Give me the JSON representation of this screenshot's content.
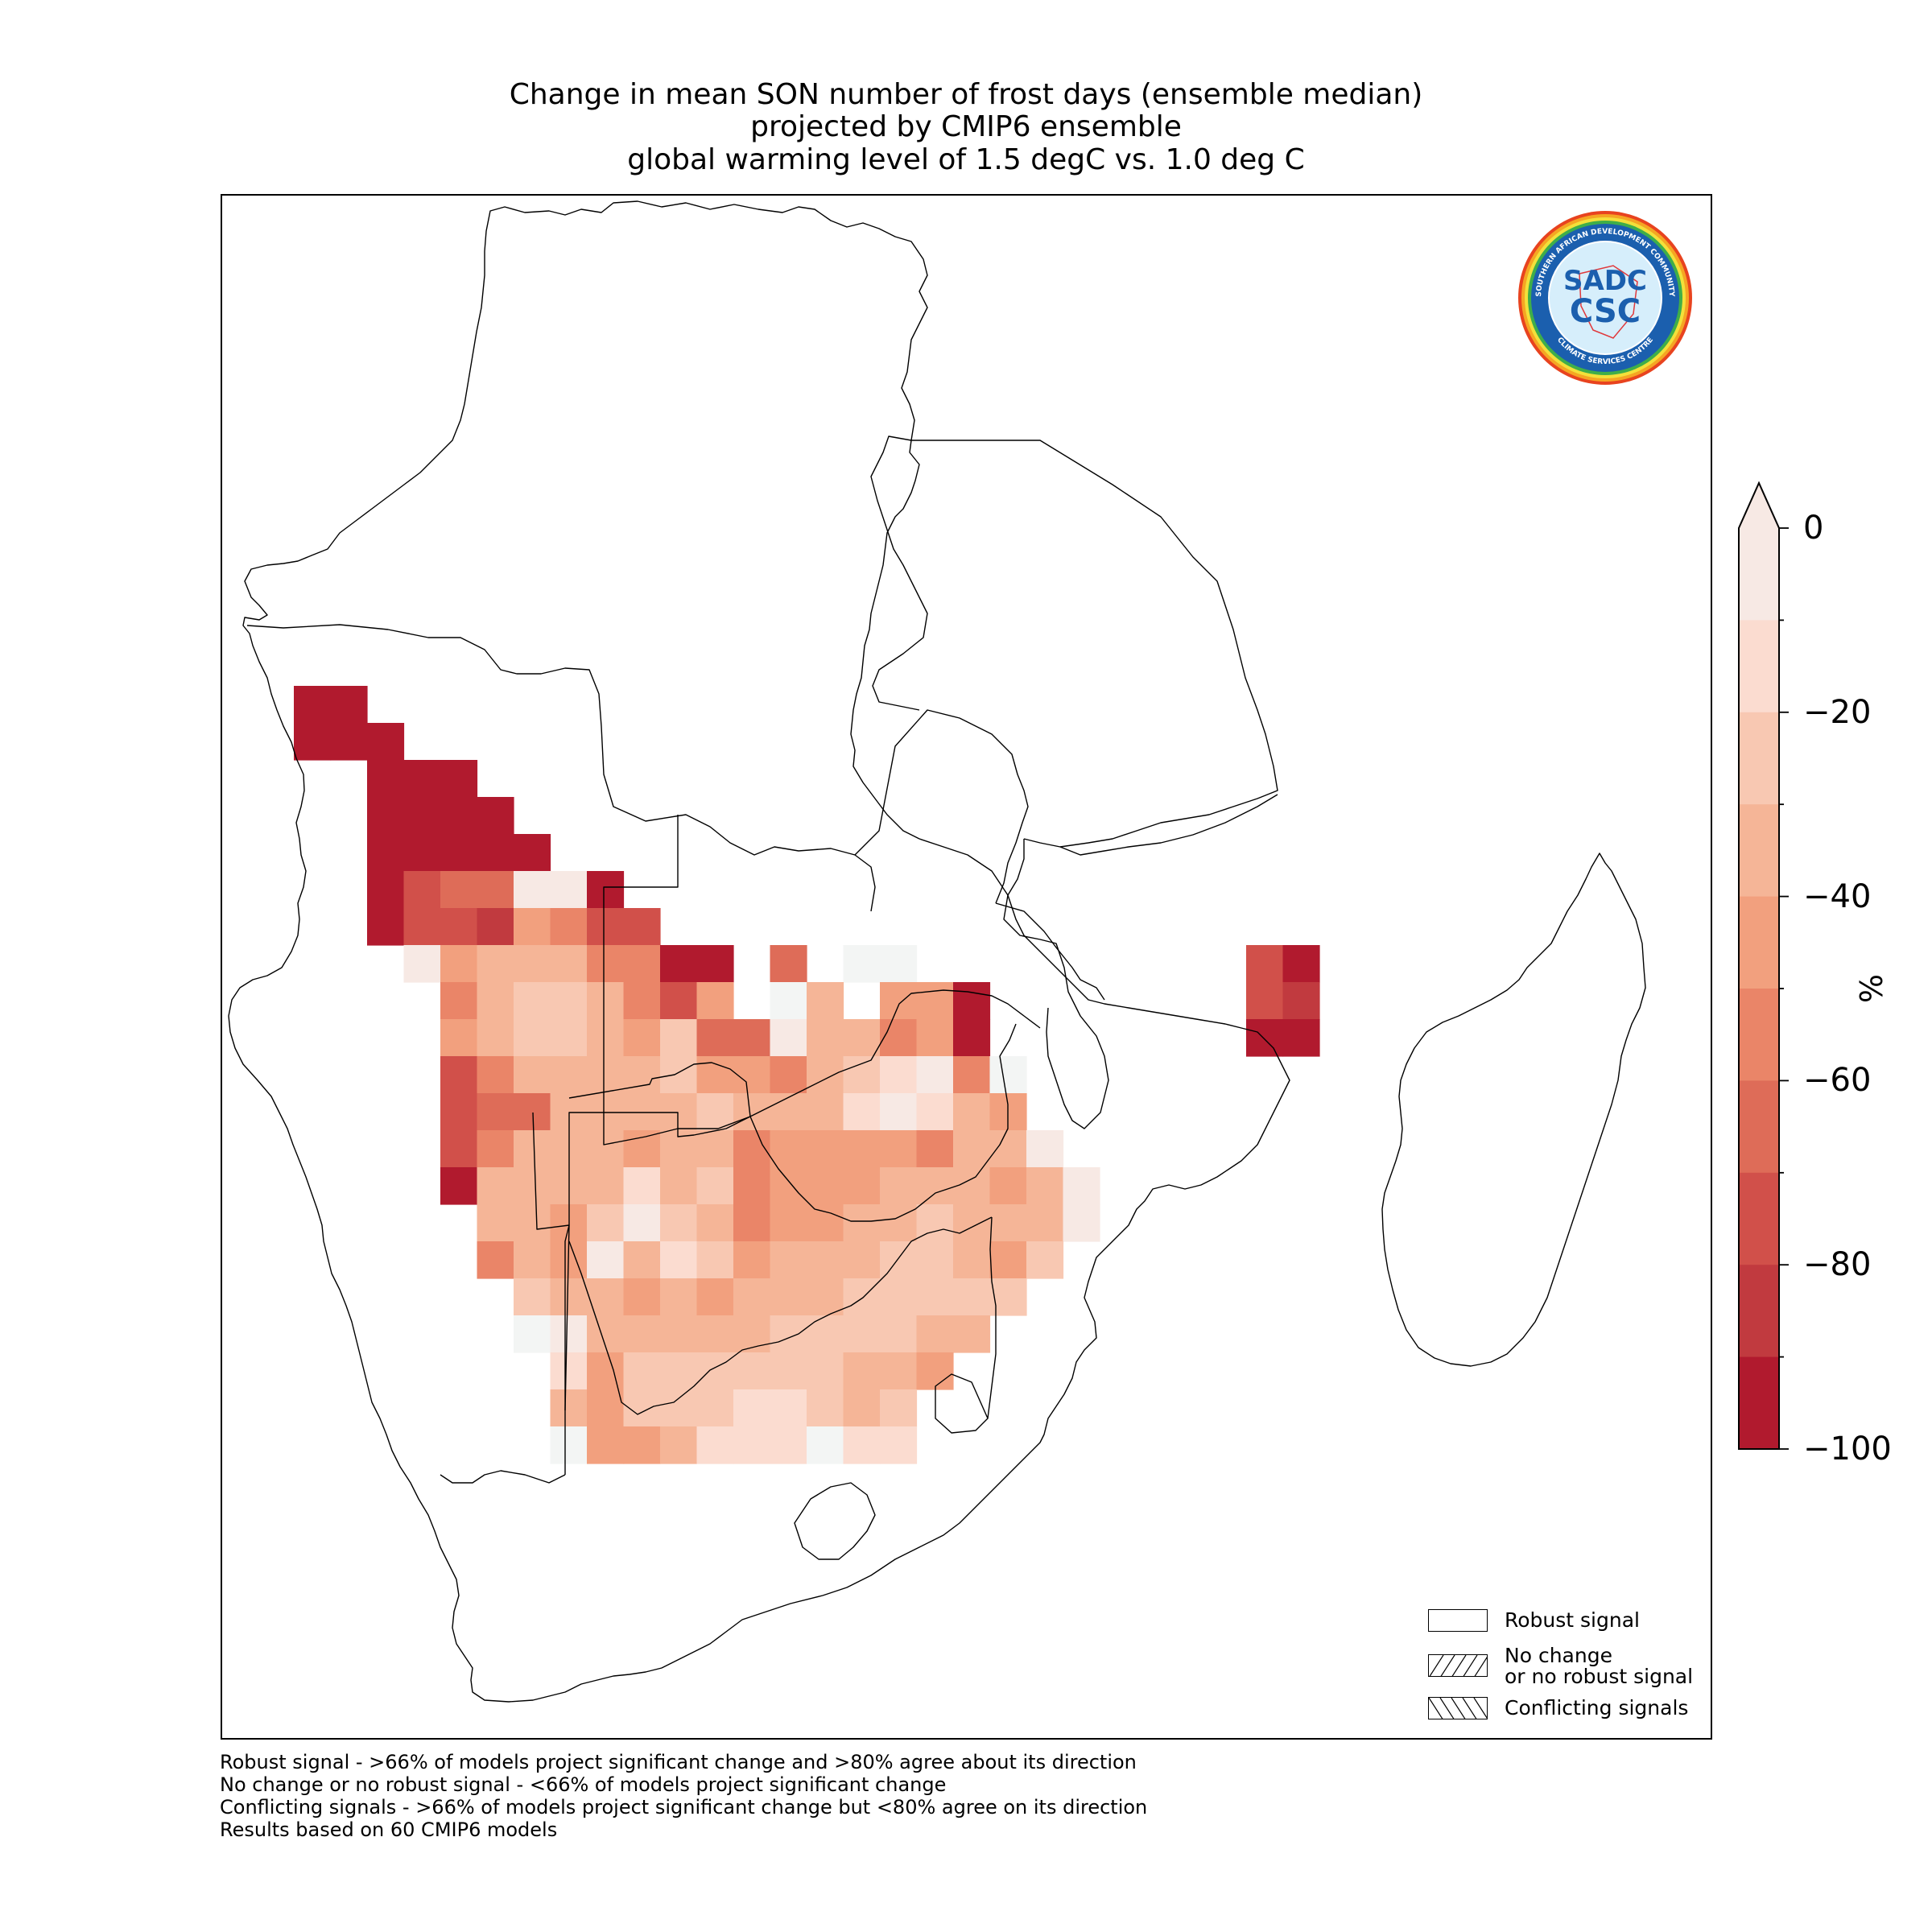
{
  "title": {
    "line1": "Change in mean SON number of frost days (ensemble median)",
    "line2": "projected by CMIP6 ensemble",
    "line3": "global warming level of 1.5 degC vs. 1.0 deg C"
  },
  "colorbar": {
    "unit": "%",
    "tick_labels": [
      "0",
      "−20",
      "−40",
      "−60",
      "−80",
      "−100"
    ],
    "extend": "min-arrow-top",
    "levels": [
      0,
      -10,
      -20,
      -30,
      -40,
      -50,
      -60,
      -70,
      -80,
      -90,
      -100
    ],
    "colors": [
      "#f7e9e4",
      "#fbdcd0",
      "#f8c8b2",
      "#f5b597",
      "#f2a07e",
      "#ea8568",
      "#de6c58",
      "#d1504a",
      "#c13a3f",
      "#b11a2e"
    ]
  },
  "legend": {
    "items": [
      {
        "label": "Robust signal",
        "pattern": "none"
      },
      {
        "label": "No change\nor no robust signal",
        "line1": "No change",
        "line2": "or no robust signal",
        "pattern": "forward-hatch"
      },
      {
        "label": "Conflicting signals",
        "pattern": "back-hatch"
      }
    ]
  },
  "footnotes": [
    "Robust signal - >66% of models project significant change and >80% agree about its direction",
    "No change or no robust signal - <66% of models project significant change",
    "Conflicting signals - >66% of models project significant change but <80% agree on its direction",
    "Results based on 60 CMIP6 models"
  ],
  "logo": {
    "name": "SADC CSC",
    "text_top": "SOUTHERN AFRICAN DEVELOPMENT COMMUNITY",
    "text_bottom": "CLIMATE SERVICES CENTRE",
    "mark_line1": "SADC",
    "mark_line2": "CSC"
  },
  "grid_legend_note": "",
  "map_data": {
    "cell_values_legend": "cell class index: 0=0, 1=-10..0, 2=-20..-10, 3=-30..-20, 4=-40..-30, 5=-50..-40, 6=-60..-50, 7=-70..-60, 8=-80..-70, 9=-90..-80, 10=<-90",
    "region": "Southern Africa incl. Madagascar",
    "cells": [
      [
        9,
        2,
        10
      ],
      [
        9,
        3,
        10
      ],
      [
        10,
        2,
        10
      ],
      [
        10,
        3,
        10
      ],
      [
        10,
        4,
        10
      ],
      [
        11,
        4,
        10
      ],
      [
        11,
        5,
        10
      ],
      [
        11,
        6,
        10
      ],
      [
        12,
        4,
        10
      ],
      [
        12,
        5,
        10
      ],
      [
        12,
        6,
        10
      ],
      [
        12,
        7,
        10
      ],
      [
        13,
        4,
        10
      ],
      [
        13,
        5,
        10
      ],
      [
        13,
        6,
        10
      ],
      [
        13,
        7,
        10
      ],
      [
        13,
        8,
        10
      ],
      [
        14,
        4,
        10
      ],
      [
        14,
        5,
        8
      ],
      [
        14,
        6,
        7
      ],
      [
        14,
        7,
        7
      ],
      [
        14,
        8,
        1
      ],
      [
        14,
        9,
        1
      ],
      [
        14,
        10,
        10
      ],
      [
        15,
        4,
        10
      ],
      [
        15,
        5,
        8
      ],
      [
        15,
        6,
        8
      ],
      [
        15,
        7,
        9
      ],
      [
        15,
        8,
        5
      ],
      [
        15,
        9,
        6
      ],
      [
        15,
        10,
        8
      ],
      [
        15,
        11,
        8
      ],
      [
        16,
        5,
        1
      ],
      [
        16,
        6,
        5
      ],
      [
        16,
        7,
        4
      ],
      [
        16,
        8,
        4
      ],
      [
        16,
        9,
        4
      ],
      [
        16,
        10,
        6
      ],
      [
        16,
        11,
        6
      ],
      [
        16,
        12,
        10
      ],
      [
        16,
        13,
        10
      ],
      [
        16,
        15,
        7
      ],
      [
        16,
        17,
        0
      ],
      [
        16,
        18,
        0
      ],
      [
        17,
        6,
        6
      ],
      [
        17,
        7,
        4
      ],
      [
        17,
        8,
        3
      ],
      [
        17,
        9,
        3
      ],
      [
        17,
        10,
        4
      ],
      [
        17,
        11,
        6
      ],
      [
        17,
        12,
        8
      ],
      [
        17,
        13,
        5
      ],
      [
        17,
        15,
        0
      ],
      [
        17,
        16,
        4
      ],
      [
        17,
        18,
        5
      ],
      [
        17,
        19,
        5
      ],
      [
        17,
        20,
        10
      ],
      [
        18,
        6,
        5
      ],
      [
        18,
        7,
        4
      ],
      [
        18,
        8,
        3
      ],
      [
        18,
        9,
        3
      ],
      [
        18,
        10,
        4
      ],
      [
        18,
        11,
        5
      ],
      [
        18,
        12,
        3
      ],
      [
        18,
        13,
        7
      ],
      [
        18,
        14,
        7
      ],
      [
        18,
        15,
        1
      ],
      [
        18,
        16,
        4
      ],
      [
        18,
        17,
        4
      ],
      [
        18,
        18,
        6
      ],
      [
        18,
        19,
        5
      ],
      [
        18,
        20,
        10
      ],
      [
        19,
        6,
        8
      ],
      [
        19,
        7,
        6
      ],
      [
        19,
        8,
        4
      ],
      [
        19,
        9,
        4
      ],
      [
        19,
        10,
        4
      ],
      [
        19,
        11,
        4
      ],
      [
        19,
        12,
        3
      ],
      [
        19,
        13,
        5
      ],
      [
        19,
        14,
        5
      ],
      [
        19,
        15,
        6
      ],
      [
        19,
        16,
        4
      ],
      [
        19,
        17,
        3
      ],
      [
        19,
        18,
        2
      ],
      [
        19,
        19,
        1
      ],
      [
        19,
        20,
        6
      ],
      [
        19,
        21,
        0
      ],
      [
        20,
        6,
        8
      ],
      [
        20,
        7,
        7
      ],
      [
        20,
        8,
        7
      ],
      [
        20,
        9,
        4
      ],
      [
        20,
        10,
        4
      ],
      [
        20,
        11,
        4
      ],
      [
        20,
        12,
        4
      ],
      [
        20,
        13,
        3
      ],
      [
        20,
        14,
        4
      ],
      [
        20,
        15,
        4
      ],
      [
        20,
        16,
        4
      ],
      [
        20,
        17,
        2
      ],
      [
        20,
        18,
        1
      ],
      [
        20,
        19,
        2
      ],
      [
        20,
        20,
        4
      ],
      [
        20,
        21,
        5
      ],
      [
        21,
        6,
        8
      ],
      [
        21,
        7,
        6
      ],
      [
        21,
        8,
        4
      ],
      [
        21,
        9,
        4
      ],
      [
        21,
        10,
        4
      ],
      [
        21,
        11,
        5
      ],
      [
        21,
        12,
        4
      ],
      [
        21,
        13,
        4
      ],
      [
        21,
        14,
        6
      ],
      [
        21,
        15,
        5
      ],
      [
        21,
        16,
        5
      ],
      [
        21,
        17,
        5
      ],
      [
        21,
        18,
        5
      ],
      [
        21,
        19,
        6
      ],
      [
        21,
        20,
        4
      ],
      [
        21,
        21,
        4
      ],
      [
        21,
        22,
        1
      ],
      [
        22,
        6,
        10
      ],
      [
        22,
        7,
        4
      ],
      [
        22,
        8,
        4
      ],
      [
        22,
        9,
        4
      ],
      [
        22,
        10,
        4
      ],
      [
        22,
        11,
        2
      ],
      [
        22,
        12,
        4
      ],
      [
        22,
        13,
        3
      ],
      [
        22,
        14,
        6
      ],
      [
        22,
        15,
        5
      ],
      [
        22,
        16,
        5
      ],
      [
        22,
        17,
        5
      ],
      [
        22,
        18,
        4
      ],
      [
        22,
        19,
        4
      ],
      [
        22,
        20,
        4
      ],
      [
        22,
        21,
        5
      ],
      [
        22,
        22,
        4
      ],
      [
        22,
        23,
        1
      ],
      [
        23,
        7,
        4
      ],
      [
        23,
        8,
        4
      ],
      [
        23,
        9,
        5
      ],
      [
        23,
        10,
        3
      ],
      [
        23,
        11,
        1
      ],
      [
        23,
        12,
        3
      ],
      [
        23,
        13,
        4
      ],
      [
        23,
        14,
        6
      ],
      [
        23,
        15,
        5
      ],
      [
        23,
        16,
        5
      ],
      [
        23,
        17,
        4
      ],
      [
        23,
        18,
        4
      ],
      [
        23,
        19,
        3
      ],
      [
        23,
        20,
        4
      ],
      [
        23,
        21,
        4
      ],
      [
        23,
        22,
        4
      ],
      [
        23,
        23,
        1
      ],
      [
        24,
        7,
        6
      ],
      [
        24,
        8,
        4
      ],
      [
        24,
        9,
        5
      ],
      [
        24,
        10,
        1
      ],
      [
        24,
        11,
        4
      ],
      [
        24,
        12,
        2
      ],
      [
        24,
        13,
        3
      ],
      [
        24,
        14,
        5
      ],
      [
        24,
        15,
        4
      ],
      [
        24,
        16,
        4
      ],
      [
        24,
        17,
        4
      ],
      [
        24,
        18,
        3
      ],
      [
        24,
        19,
        3
      ],
      [
        24,
        20,
        4
      ],
      [
        24,
        21,
        5
      ],
      [
        24,
        22,
        3
      ],
      [
        25,
        8,
        3
      ],
      [
        25,
        9,
        4
      ],
      [
        25,
        10,
        4
      ],
      [
        25,
        11,
        5
      ],
      [
        25,
        12,
        4
      ],
      [
        25,
        13,
        5
      ],
      [
        25,
        14,
        4
      ],
      [
        25,
        15,
        4
      ],
      [
        25,
        16,
        4
      ],
      [
        25,
        17,
        3
      ],
      [
        25,
        18,
        3
      ],
      [
        25,
        19,
        3
      ],
      [
        25,
        20,
        3
      ],
      [
        25,
        21,
        3
      ],
      [
        26,
        8,
        0
      ],
      [
        26,
        9,
        1
      ],
      [
        26,
        10,
        4
      ],
      [
        26,
        11,
        4
      ],
      [
        26,
        12,
        4
      ],
      [
        26,
        13,
        4
      ],
      [
        26,
        14,
        4
      ],
      [
        26,
        15,
        3
      ],
      [
        26,
        16,
        3
      ],
      [
        26,
        17,
        3
      ],
      [
        26,
        18,
        3
      ],
      [
        26,
        19,
        4
      ],
      [
        26,
        20,
        4
      ],
      [
        27,
        9,
        2
      ],
      [
        27,
        10,
        5
      ],
      [
        27,
        11,
        3
      ],
      [
        27,
        12,
        3
      ],
      [
        27,
        13,
        3
      ],
      [
        27,
        14,
        3
      ],
      [
        27,
        15,
        3
      ],
      [
        27,
        16,
        3
      ],
      [
        27,
        17,
        4
      ],
      [
        27,
        18,
        4
      ],
      [
        27,
        19,
        5
      ],
      [
        28,
        9,
        4
      ],
      [
        28,
        10,
        5
      ],
      [
        28,
        11,
        3
      ],
      [
        28,
        12,
        3
      ],
      [
        28,
        13,
        3
      ],
      [
        28,
        14,
        2
      ],
      [
        28,
        15,
        2
      ],
      [
        28,
        16,
        3
      ],
      [
        28,
        17,
        4
      ],
      [
        28,
        18,
        3
      ],
      [
        29,
        9,
        0
      ],
      [
        29,
        10,
        5
      ],
      [
        29,
        11,
        5
      ],
      [
        29,
        12,
        4
      ],
      [
        29,
        13,
        2
      ],
      [
        29,
        14,
        2
      ],
      [
        29,
        15,
        2
      ],
      [
        29,
        16,
        0
      ],
      [
        29,
        17,
        2
      ],
      [
        29,
        18,
        2
      ],
      [
        16,
        28,
        8
      ],
      [
        16,
        29,
        10
      ],
      [
        17,
        28,
        8
      ],
      [
        17,
        29,
        9
      ],
      [
        18,
        28,
        10
      ],
      [
        18,
        29,
        10
      ]
    ]
  }
}
